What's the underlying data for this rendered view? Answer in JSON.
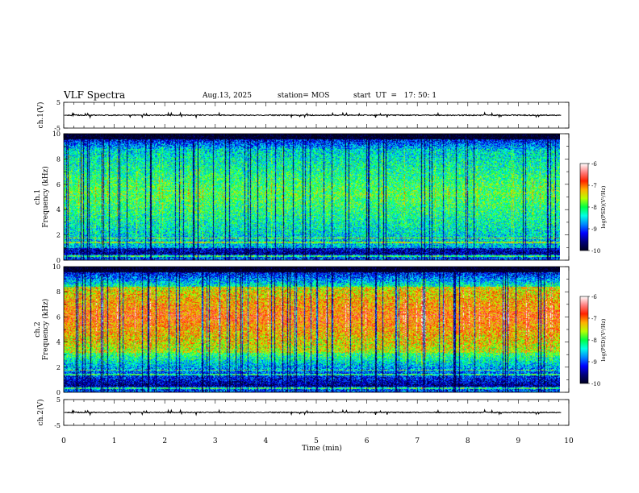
{
  "header": {
    "title": "VLF Spectra",
    "date": "Aug.13, 2025",
    "station": "station= MOS",
    "start_ut": "start  UT  =   17: 50: 1"
  },
  "colors": {
    "axis": "#000000",
    "background": "#ffffff",
    "colormap": [
      "#000020",
      "#00007a",
      "#0000ff",
      "#0088ff",
      "#00ffe6",
      "#00ff44",
      "#b8ff00",
      "#ffb000",
      "#ff2200",
      "#ff8080",
      "#ffffff"
    ]
  },
  "chart_data": [
    {
      "id": "ch1_voltage",
      "type": "line",
      "ylabel": "ch.1(V)",
      "ylim": [
        -5,
        5
      ],
      "yticks": [
        {
          "value": 5,
          "label": "5"
        },
        {
          "value": -5,
          "label": "-5"
        }
      ],
      "xlim": [
        0,
        10
      ],
      "series": [
        {
          "name": "ch.1",
          "level": 0,
          "noise": 0.3
        }
      ]
    },
    {
      "id": "ch1_spectrogram",
      "type": "heatmap",
      "ylabel": "ch.1\nFrequency (kHz)",
      "ylabel_lines": [
        "ch.1",
        "Frequency (kHz)"
      ],
      "ylim": [
        0,
        10
      ],
      "yticks": [
        {
          "value": 0,
          "label": "0"
        },
        {
          "value": 2,
          "label": "2"
        },
        {
          "value": 4,
          "label": "4"
        },
        {
          "value": 6,
          "label": "6"
        },
        {
          "value": 8,
          "label": "8"
        },
        {
          "value": 10,
          "label": "10"
        }
      ],
      "xlim": [
        0,
        9.83
      ],
      "seed": 11,
      "peak_band": [
        1.0,
        8.8
      ],
      "peak_level": -7.9,
      "colorbar": {
        "label": "log(PSD)(V²/Hz)",
        "range": [
          -10,
          -6
        ],
        "ticks": [
          {
            "value": -6,
            "label": "-6"
          },
          {
            "value": -7,
            "label": "-7"
          },
          {
            "value": -8,
            "label": "-8"
          },
          {
            "value": -9,
            "label": "-9"
          },
          {
            "value": -10,
            "label": "-10"
          }
        ]
      }
    },
    {
      "id": "ch2_spectrogram",
      "type": "heatmap",
      "ylabel": "ch.2\nFrequency (kHz)",
      "ylabel_lines": [
        "ch.2",
        "Frequency (kHz)"
      ],
      "ylim": [
        0,
        10
      ],
      "yticks": [
        {
          "value": 0,
          "label": "0"
        },
        {
          "value": 2,
          "label": "2"
        },
        {
          "value": 4,
          "label": "4"
        },
        {
          "value": 6,
          "label": "6"
        },
        {
          "value": 8,
          "label": "8"
        },
        {
          "value": 10,
          "label": "10"
        }
      ],
      "xlim": [
        0,
        9.83
      ],
      "seed": 29,
      "peak_band": [
        3.2,
        8.4
      ],
      "peak_level": -6.9,
      "colorbar": {
        "label": "log(PSD)(V²/Hz)",
        "range": [
          -10,
          -6
        ],
        "ticks": [
          {
            "value": -6,
            "label": "-6"
          },
          {
            "value": -7,
            "label": "-7"
          },
          {
            "value": -8,
            "label": "-8"
          },
          {
            "value": -9,
            "label": "-9"
          },
          {
            "value": -10,
            "label": "-10"
          }
        ]
      }
    },
    {
      "id": "ch2_voltage",
      "type": "line",
      "ylabel": "ch.2(V)",
      "ylim": [
        -5,
        5
      ],
      "yticks": [
        {
          "value": 5,
          "label": "5"
        },
        {
          "value": -5,
          "label": "-5"
        }
      ],
      "xlim": [
        0,
        10
      ],
      "series": [
        {
          "name": "ch.2",
          "level": 0,
          "noise": 0.3
        }
      ]
    }
  ],
  "xaxis": {
    "label": "Time  (min)",
    "range": [
      0,
      10
    ],
    "ticks": [
      {
        "value": 0,
        "label": "0"
      },
      {
        "value": 1,
        "label": "1"
      },
      {
        "value": 2,
        "label": "2"
      },
      {
        "value": 3,
        "label": "3"
      },
      {
        "value": 4,
        "label": "4"
      },
      {
        "value": 5,
        "label": "5"
      },
      {
        "value": 6,
        "label": "6"
      },
      {
        "value": 7,
        "label": "7"
      },
      {
        "value": 8,
        "label": "8"
      },
      {
        "value": 9,
        "label": "9"
      },
      {
        "value": 10,
        "label": "10"
      }
    ]
  }
}
